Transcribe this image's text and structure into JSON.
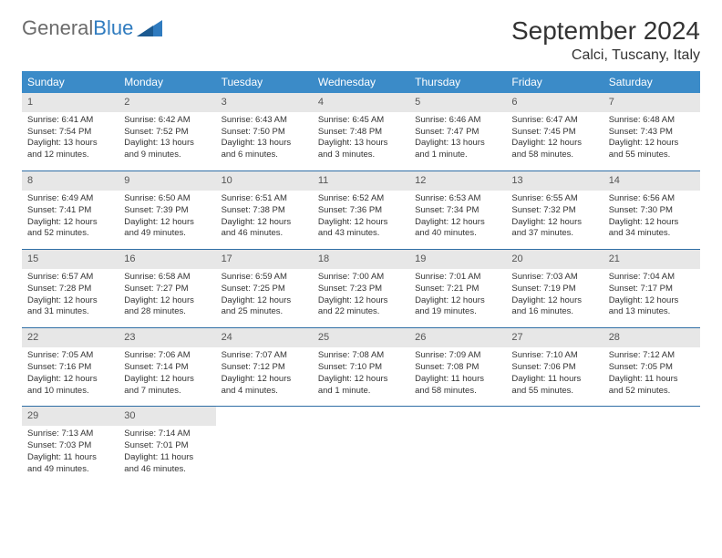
{
  "logo": {
    "text1": "General",
    "text2": "Blue"
  },
  "title": "September 2024",
  "subtitle": "Calci, Tuscany, Italy",
  "colors": {
    "header_bg": "#3b8bc8",
    "daynum_bg": "#e7e7e7",
    "border": "#2f6ea5",
    "logo_gray": "#6b6b6b",
    "logo_blue": "#2f7bbf"
  },
  "weekdays": [
    "Sunday",
    "Monday",
    "Tuesday",
    "Wednesday",
    "Thursday",
    "Friday",
    "Saturday"
  ],
  "weeks": [
    [
      {
        "n": "1",
        "sr": "6:41 AM",
        "ss": "7:54 PM",
        "dl": "13 hours and 12 minutes."
      },
      {
        "n": "2",
        "sr": "6:42 AM",
        "ss": "7:52 PM",
        "dl": "13 hours and 9 minutes."
      },
      {
        "n": "3",
        "sr": "6:43 AM",
        "ss": "7:50 PM",
        "dl": "13 hours and 6 minutes."
      },
      {
        "n": "4",
        "sr": "6:45 AM",
        "ss": "7:48 PM",
        "dl": "13 hours and 3 minutes."
      },
      {
        "n": "5",
        "sr": "6:46 AM",
        "ss": "7:47 PM",
        "dl": "13 hours and 1 minute."
      },
      {
        "n": "6",
        "sr": "6:47 AM",
        "ss": "7:45 PM",
        "dl": "12 hours and 58 minutes."
      },
      {
        "n": "7",
        "sr": "6:48 AM",
        "ss": "7:43 PM",
        "dl": "12 hours and 55 minutes."
      }
    ],
    [
      {
        "n": "8",
        "sr": "6:49 AM",
        "ss": "7:41 PM",
        "dl": "12 hours and 52 minutes."
      },
      {
        "n": "9",
        "sr": "6:50 AM",
        "ss": "7:39 PM",
        "dl": "12 hours and 49 minutes."
      },
      {
        "n": "10",
        "sr": "6:51 AM",
        "ss": "7:38 PM",
        "dl": "12 hours and 46 minutes."
      },
      {
        "n": "11",
        "sr": "6:52 AM",
        "ss": "7:36 PM",
        "dl": "12 hours and 43 minutes."
      },
      {
        "n": "12",
        "sr": "6:53 AM",
        "ss": "7:34 PM",
        "dl": "12 hours and 40 minutes."
      },
      {
        "n": "13",
        "sr": "6:55 AM",
        "ss": "7:32 PM",
        "dl": "12 hours and 37 minutes."
      },
      {
        "n": "14",
        "sr": "6:56 AM",
        "ss": "7:30 PM",
        "dl": "12 hours and 34 minutes."
      }
    ],
    [
      {
        "n": "15",
        "sr": "6:57 AM",
        "ss": "7:28 PM",
        "dl": "12 hours and 31 minutes."
      },
      {
        "n": "16",
        "sr": "6:58 AM",
        "ss": "7:27 PM",
        "dl": "12 hours and 28 minutes."
      },
      {
        "n": "17",
        "sr": "6:59 AM",
        "ss": "7:25 PM",
        "dl": "12 hours and 25 minutes."
      },
      {
        "n": "18",
        "sr": "7:00 AM",
        "ss": "7:23 PM",
        "dl": "12 hours and 22 minutes."
      },
      {
        "n": "19",
        "sr": "7:01 AM",
        "ss": "7:21 PM",
        "dl": "12 hours and 19 minutes."
      },
      {
        "n": "20",
        "sr": "7:03 AM",
        "ss": "7:19 PM",
        "dl": "12 hours and 16 minutes."
      },
      {
        "n": "21",
        "sr": "7:04 AM",
        "ss": "7:17 PM",
        "dl": "12 hours and 13 minutes."
      }
    ],
    [
      {
        "n": "22",
        "sr": "7:05 AM",
        "ss": "7:16 PM",
        "dl": "12 hours and 10 minutes."
      },
      {
        "n": "23",
        "sr": "7:06 AM",
        "ss": "7:14 PM",
        "dl": "12 hours and 7 minutes."
      },
      {
        "n": "24",
        "sr": "7:07 AM",
        "ss": "7:12 PM",
        "dl": "12 hours and 4 minutes."
      },
      {
        "n": "25",
        "sr": "7:08 AM",
        "ss": "7:10 PM",
        "dl": "12 hours and 1 minute."
      },
      {
        "n": "26",
        "sr": "7:09 AM",
        "ss": "7:08 PM",
        "dl": "11 hours and 58 minutes."
      },
      {
        "n": "27",
        "sr": "7:10 AM",
        "ss": "7:06 PM",
        "dl": "11 hours and 55 minutes."
      },
      {
        "n": "28",
        "sr": "7:12 AM",
        "ss": "7:05 PM",
        "dl": "11 hours and 52 minutes."
      }
    ],
    [
      {
        "n": "29",
        "sr": "7:13 AM",
        "ss": "7:03 PM",
        "dl": "11 hours and 49 minutes."
      },
      {
        "n": "30",
        "sr": "7:14 AM",
        "ss": "7:01 PM",
        "dl": "11 hours and 46 minutes."
      },
      null,
      null,
      null,
      null,
      null
    ]
  ]
}
